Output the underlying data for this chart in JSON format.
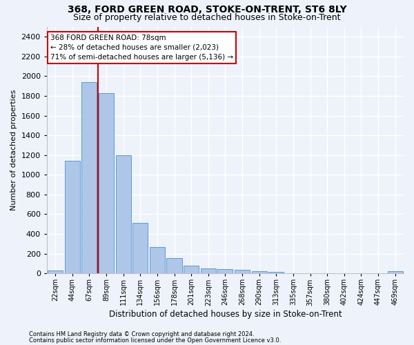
{
  "title": "368, FORD GREEN ROAD, STOKE-ON-TRENT, ST6 8LY",
  "subtitle": "Size of property relative to detached houses in Stoke-on-Trent",
  "xlabel": "Distribution of detached houses by size in Stoke-on-Trent",
  "ylabel": "Number of detached properties",
  "bin_labels": [
    "22sqm",
    "44sqm",
    "67sqm",
    "89sqm",
    "111sqm",
    "134sqm",
    "156sqm",
    "178sqm",
    "201sqm",
    "223sqm",
    "246sqm",
    "268sqm",
    "290sqm",
    "313sqm",
    "335sqm",
    "357sqm",
    "380sqm",
    "402sqm",
    "424sqm",
    "447sqm",
    "469sqm"
  ],
  "bar_values": [
    30,
    1145,
    1940,
    1830,
    1200,
    510,
    265,
    155,
    80,
    50,
    43,
    40,
    23,
    18,
    5,
    3,
    2,
    2,
    1,
    1,
    20
  ],
  "bar_color": "#aec6e8",
  "bar_edge_color": "#5b9bd5",
  "vline_x": 2.5,
  "vline_color": "#cc0000",
  "annotation_title": "368 FORD GREEN ROAD: 78sqm",
  "annotation_line1": "← 28% of detached houses are smaller (2,023)",
  "annotation_line2": "71% of semi-detached houses are larger (5,136) →",
  "annotation_box_facecolor": "#ffffff",
  "annotation_box_edgecolor": "#cc0000",
  "ylim": [
    0,
    2500
  ],
  "yticks": [
    0,
    200,
    400,
    600,
    800,
    1000,
    1200,
    1400,
    1600,
    1800,
    2000,
    2200,
    2400
  ],
  "footer1": "Contains HM Land Registry data © Crown copyright and database right 2024.",
  "footer2": "Contains public sector information licensed under the Open Government Licence v3.0.",
  "bg_color": "#eef2fb",
  "grid_color": "#ffffff",
  "title_fontsize": 10,
  "subtitle_fontsize": 9,
  "tick_fontsize": 7,
  "ylabel_fontsize": 8,
  "xlabel_fontsize": 8.5,
  "footer_fontsize": 6,
  "annot_fontsize": 7.5
}
